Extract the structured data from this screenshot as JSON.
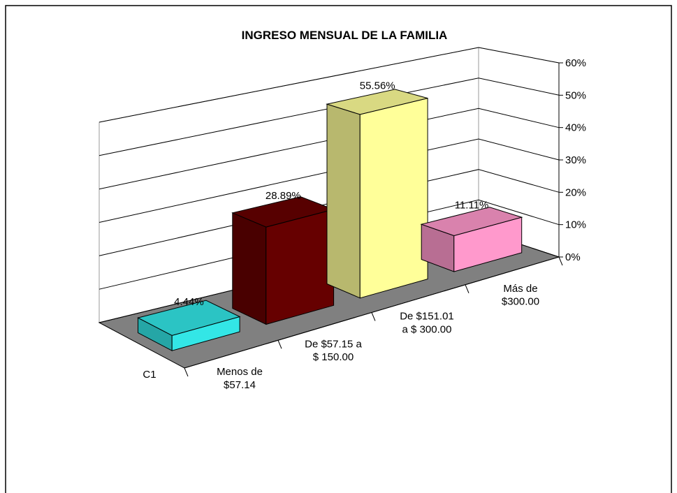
{
  "chart_data": {
    "type": "bar3d",
    "title": "INGRESO MENSUAL DE LA FAMILIA",
    "categories": [
      "Menos de\n$57.14",
      "De $57.15 a\n$ 150.00",
      "De $151.01\na  $ 300.00",
      "Más de\n$300.00"
    ],
    "series": [
      {
        "name": "C1",
        "colors": [
          "#33e6e6",
          "#660000",
          "#ffff99",
          "#ff99cc"
        ],
        "values": [
          4.44,
          28.89,
          55.56,
          11.11
        ],
        "value_labels": [
          "4.44%",
          "28.89%",
          "55.56%",
          "11.11%"
        ]
      }
    ],
    "ylim": [
      0,
      60
    ],
    "yticks": [
      {
        "value": 0,
        "label": "0%"
      },
      {
        "value": 10,
        "label": "10%"
      },
      {
        "value": 20,
        "label": "20%"
      },
      {
        "value": 30,
        "label": "30%"
      },
      {
        "value": 40,
        "label": "40%"
      },
      {
        "value": 50,
        "label": "50%"
      },
      {
        "value": 60,
        "label": "60%"
      }
    ],
    "grid": true
  }
}
